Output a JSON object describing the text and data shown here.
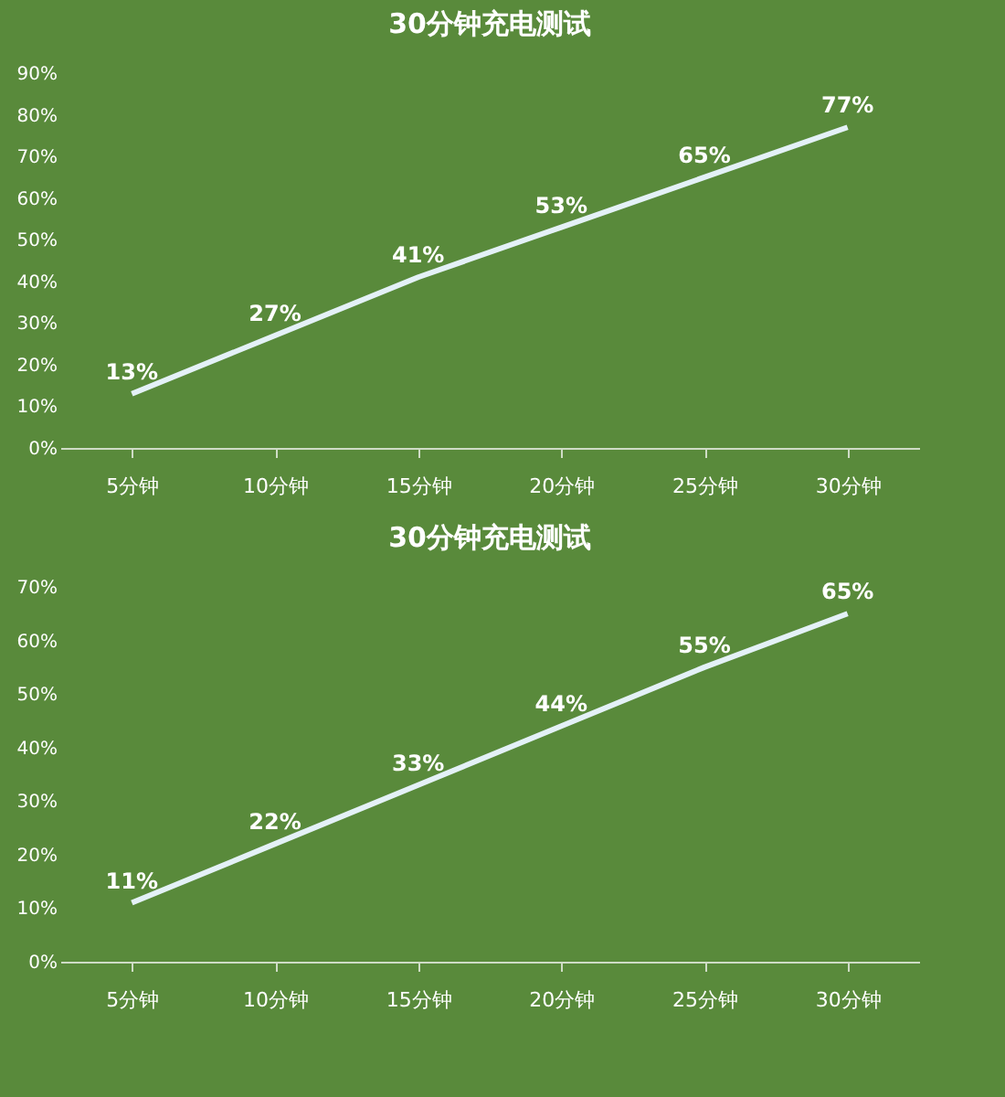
{
  "chart_data": [
    {
      "type": "line",
      "title": "30分钟充电测试",
      "categories": [
        "5分钟",
        "10分钟",
        "15分钟",
        "20分钟",
        "25分钟",
        "30分钟"
      ],
      "series": [
        {
          "color": "#e4f1f7",
          "values": [
            13,
            27,
            41,
            53,
            65,
            77
          ],
          "value_labels": [
            "13%",
            "27%",
            "41%",
            "53%",
            "65%",
            "77%"
          ]
        }
      ],
      "ylim": [
        0,
        90
      ],
      "yticks": [
        {
          "value": 0,
          "label": "0%"
        },
        {
          "value": 10,
          "label": "10%"
        },
        {
          "value": 20,
          "label": "20%"
        },
        {
          "value": 30,
          "label": "30%"
        },
        {
          "value": 40,
          "label": "40%"
        },
        {
          "value": 50,
          "label": "50%"
        },
        {
          "value": 60,
          "label": "60%"
        },
        {
          "value": 70,
          "label": "70%"
        },
        {
          "value": 80,
          "label": "80%"
        },
        {
          "value": 90,
          "label": "90%"
        }
      ],
      "grid": false,
      "marker": "none",
      "line_style": "solid"
    },
    {
      "type": "line",
      "title": "30分钟充电测试",
      "categories": [
        "5分钟",
        "10分钟",
        "15分钟",
        "20分钟",
        "25分钟",
        "30分钟"
      ],
      "series": [
        {
          "color": "#e4f1f7",
          "values": [
            11,
            22,
            33,
            44,
            55,
            65
          ],
          "value_labels": [
            "11%",
            "22%",
            "33%",
            "44%",
            "55%",
            "65%"
          ]
        }
      ],
      "ylim": [
        0,
        70
      ],
      "yticks": [
        {
          "value": 0,
          "label": "0%"
        },
        {
          "value": 10,
          "label": "10%"
        },
        {
          "value": 20,
          "label": "20%"
        },
        {
          "value": 30,
          "label": "30%"
        },
        {
          "value": 40,
          "label": "40%"
        },
        {
          "value": 50,
          "label": "50%"
        },
        {
          "value": 60,
          "label": "60%"
        },
        {
          "value": 70,
          "label": "70%"
        }
      ],
      "grid": false,
      "marker": "none",
      "line_style": "solid"
    }
  ]
}
